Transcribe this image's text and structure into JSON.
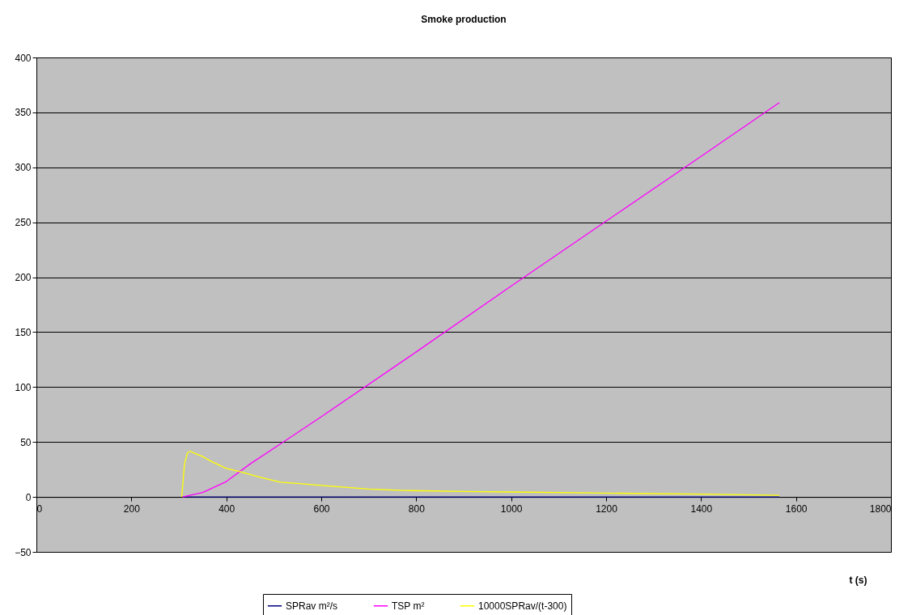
{
  "chart_data": {
    "type": "line",
    "title": "Smoke production",
    "xlabel": "t (s)",
    "xlim": [
      0,
      1800
    ],
    "xticks": [
      0,
      200,
      400,
      600,
      800,
      1000,
      1200,
      1400,
      1600,
      1800
    ],
    "ylim": [
      -50,
      400
    ],
    "yticks": [
      -50,
      0,
      50,
      100,
      150,
      200,
      250,
      300,
      350,
      400
    ],
    "grid": "y",
    "legend": "bottom",
    "marker": "none",
    "line_style": "solid",
    "series": [
      {
        "name": "SPRav m²/s",
        "color": "#000080",
        "x": [
          308,
          400,
          600,
          800,
          1000,
          1200,
          1400,
          1565
        ],
        "values": [
          0,
          0,
          0,
          0,
          0,
          0,
          0,
          0
        ]
      },
      {
        "name": "TSP m²",
        "color": "#ff00ff",
        "x": [
          308,
          350,
          400,
          450,
          520,
          600,
          800,
          1000,
          1200,
          1400,
          1565
        ],
        "values": [
          0,
          4,
          14,
          30,
          50,
          73,
          132,
          192,
          251,
          310,
          359
        ]
      },
      {
        "name": "10000SPRav/(t-300)",
        "color": "#ffff00",
        "x": [
          306,
          312,
          318,
          324,
          332,
          349,
          370,
          400,
          429,
          470,
          514,
          560,
          605,
          700,
          776,
          900,
          1000,
          1200,
          1400,
          1565
        ],
        "values": [
          0,
          30,
          40,
          41.7,
          40,
          37,
          32,
          26,
          23,
          18,
          13.5,
          12,
          10.3,
          7.2,
          5.9,
          5,
          4.5,
          3.5,
          2.5,
          1.5
        ]
      }
    ]
  }
}
